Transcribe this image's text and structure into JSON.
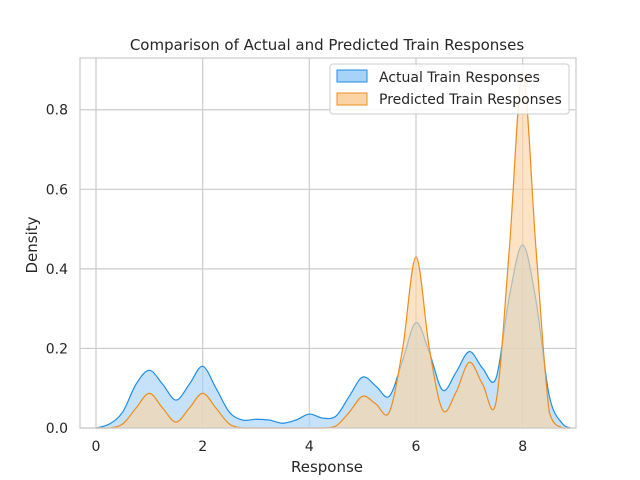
{
  "chart_data": {
    "type": "area",
    "title": "Comparison of Actual and Predicted Train Responses",
    "xlabel": "Response",
    "ylabel": "Density",
    "xlim": [
      -0.3,
      9.0
    ],
    "ylim": [
      0,
      0.93
    ],
    "xticks": [
      0,
      2,
      4,
      6,
      8
    ],
    "yticks": [
      0.0,
      0.2,
      0.4,
      0.6,
      0.8
    ],
    "grid": true,
    "legend_position": "top-right",
    "x": [
      0.0,
      0.25,
      0.5,
      0.75,
      1.0,
      1.25,
      1.5,
      1.75,
      2.0,
      2.25,
      2.5,
      2.75,
      3.0,
      3.25,
      3.5,
      3.75,
      4.0,
      4.25,
      4.5,
      4.75,
      5.0,
      5.25,
      5.5,
      5.75,
      6.0,
      6.25,
      6.5,
      6.75,
      7.0,
      7.25,
      7.5,
      7.75,
      8.0,
      8.25,
      8.5,
      8.75,
      8.9
    ],
    "series": [
      {
        "name": "Actual Train Responses",
        "color": "#1f8ee6",
        "fill": "#a6d3f7",
        "values": [
          0.0,
          0.01,
          0.04,
          0.11,
          0.145,
          0.11,
          0.07,
          0.11,
          0.155,
          0.1,
          0.04,
          0.02,
          0.022,
          0.02,
          0.012,
          0.02,
          0.035,
          0.025,
          0.03,
          0.08,
          0.128,
          0.105,
          0.08,
          0.17,
          0.265,
          0.19,
          0.095,
          0.14,
          0.192,
          0.15,
          0.125,
          0.33,
          0.46,
          0.32,
          0.08,
          0.01,
          0.0
        ]
      },
      {
        "name": "Predicted Train Responses",
        "color": "#ef8c1a",
        "fill": "#fbd4a6",
        "values": [
          0.0,
          0.0,
          0.01,
          0.05,
          0.087,
          0.05,
          0.015,
          0.05,
          0.087,
          0.05,
          0.01,
          0.0,
          0.0,
          0.0,
          0.0,
          0.0,
          0.0,
          0.0,
          0.005,
          0.04,
          0.08,
          0.06,
          0.04,
          0.2,
          0.43,
          0.2,
          0.045,
          0.09,
          0.165,
          0.11,
          0.065,
          0.45,
          0.89,
          0.45,
          0.04,
          0.0,
          0.0
        ]
      }
    ]
  }
}
